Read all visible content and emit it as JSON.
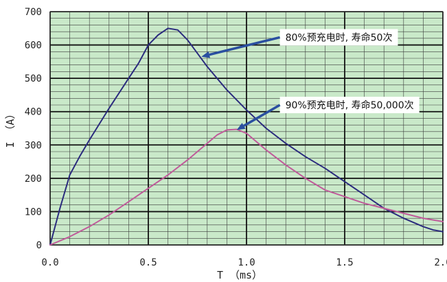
{
  "chart_data": {
    "type": "line",
    "title": "",
    "xlabel": "T （ms）",
    "ylabel": "I （A）",
    "xlim": [
      0,
      2.0
    ],
    "ylim": [
      0,
      700
    ],
    "x_ticks": [
      0.0,
      0.5,
      1.0,
      1.5,
      2.0
    ],
    "x_tick_labels": [
      "0.0",
      "0.5",
      "1.0",
      "1.5",
      "2.0"
    ],
    "y_ticks": [
      0,
      100,
      200,
      300,
      400,
      500,
      600,
      700
    ],
    "y_tick_labels": [
      "0",
      "100",
      "200",
      "300",
      "400",
      "500",
      "600",
      "700"
    ],
    "minor_x_step": 0.1,
    "minor_y_step": 20,
    "grid": true,
    "background_color": "#c9e9c9",
    "series": [
      {
        "color": "#2b2b7e",
        "x": [
          0.0,
          0.05,
          0.1,
          0.15,
          0.2,
          0.3,
          0.4,
          0.45,
          0.5,
          0.55,
          0.6,
          0.65,
          0.7,
          0.75,
          0.8,
          0.9,
          1.0,
          1.1,
          1.2,
          1.3,
          1.4,
          1.5,
          1.6,
          1.7,
          1.8,
          1.9,
          1.95,
          2.0
        ],
        "y": [
          0,
          110,
          210,
          265,
          315,
          410,
          500,
          545,
          600,
          630,
          650,
          645,
          615,
          575,
          535,
          465,
          405,
          350,
          305,
          265,
          230,
          190,
          150,
          110,
          80,
          55,
          45,
          40
        ]
      },
      {
        "color": "#c05a9a",
        "x": [
          0.0,
          0.1,
          0.2,
          0.3,
          0.4,
          0.5,
          0.6,
          0.7,
          0.8,
          0.85,
          0.9,
          0.95,
          1.0,
          1.1,
          1.2,
          1.3,
          1.4,
          1.5,
          1.6,
          1.7,
          1.8,
          1.9,
          2.0
        ],
        "y": [
          0,
          25,
          55,
          90,
          130,
          170,
          210,
          255,
          305,
          330,
          345,
          347,
          335,
          285,
          240,
          200,
          165,
          145,
          125,
          110,
          95,
          80,
          70
        ]
      }
    ],
    "annotations": [
      {
        "text": "80%预充电时, 寿命50次",
        "anchor_x": 0.77,
        "anchor_y": 565,
        "label_x": 1.17,
        "label_y": 623
      },
      {
        "text": "90%预充电时, 寿命50,000次",
        "anchor_x": 0.95,
        "anchor_y": 345,
        "label_x": 1.17,
        "label_y": 420
      }
    ]
  }
}
